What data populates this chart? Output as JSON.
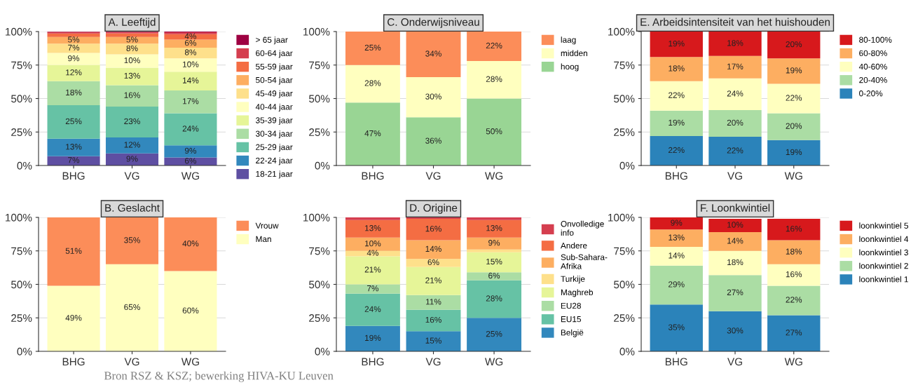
{
  "chart_data": [
    {
      "type": "bar",
      "stacked": true,
      "title": "A. Leeftijd",
      "categories": [
        "BHG",
        "VG",
        "WG"
      ],
      "ylim": [
        0,
        100
      ],
      "yticks": [
        {
          "value": 0,
          "label": "0%"
        },
        {
          "value": 25,
          "label": "25%"
        },
        {
          "value": 50,
          "label": "50%"
        },
        {
          "value": 75,
          "label": "75%"
        },
        {
          "value": 100,
          "label": "100%"
        }
      ],
      "grid": "y",
      "legend": "right",
      "series": [
        {
          "name": "18-21 jaar",
          "color": "#5e4fa2",
          "values": [
            7,
            9,
            6
          ],
          "value_labels": [
            "7%",
            "9%",
            "6%"
          ]
        },
        {
          "name": "22-24 jaar",
          "color": "#3288bd",
          "values": [
            13,
            12,
            9
          ],
          "value_labels": [
            "13%",
            "12%",
            "9%"
          ]
        },
        {
          "name": "25-29 jaar",
          "color": "#66c2a5",
          "values": [
            25,
            23,
            24
          ],
          "value_labels": [
            "25%",
            "23%",
            "24%"
          ]
        },
        {
          "name": "30-34 jaar",
          "color": "#abdda4",
          "values": [
            18,
            16,
            17
          ],
          "value_labels": [
            "18%",
            "16%",
            "17%"
          ]
        },
        {
          "name": "35-39 jaar",
          "color": "#e6f598",
          "values": [
            12,
            13,
            14
          ],
          "value_labels": [
            "12%",
            "13%",
            "14%"
          ]
        },
        {
          "name": "40-44 jaar",
          "color": "#ffffbf",
          "values": [
            9,
            10,
            10
          ],
          "value_labels": [
            "9%",
            "10%",
            "10%"
          ]
        },
        {
          "name": "45-49 jaar",
          "color": "#fee08b",
          "values": [
            7,
            8,
            8
          ],
          "value_labels": [
            "7%",
            "8%",
            "8%"
          ]
        },
        {
          "name": "50-54 jaar",
          "color": "#fdae61",
          "values": [
            5,
            5,
            6
          ],
          "value_labels": [
            "5%",
            "5%",
            "6%"
          ]
        },
        {
          "name": "55-59 jaar",
          "color": "#f46d43",
          "values": [
            2.5,
            2.7,
            4
          ],
          "value_labels": [
            null,
            null,
            "4%"
          ]
        },
        {
          "name": "60-64 jaar",
          "color": "#d53e4f",
          "values": [
            1.2,
            1,
            1.5
          ],
          "value_labels": [
            null,
            null,
            null
          ]
        },
        {
          "name": "> 65 jaar",
          "color": "#9e0142",
          "values": [
            0.3,
            0.3,
            0.5
          ],
          "value_labels": [
            null,
            null,
            null
          ]
        }
      ]
    },
    {
      "type": "bar",
      "stacked": true,
      "title": "C. Onderwijsniveau",
      "categories": [
        "BHG",
        "VG",
        "WG"
      ],
      "ylim": [
        0,
        100
      ],
      "yticks": [
        {
          "value": 0,
          "label": "0%"
        },
        {
          "value": 25,
          "label": "25%"
        },
        {
          "value": 50,
          "label": "50%"
        },
        {
          "value": 75,
          "label": "75%"
        },
        {
          "value": 100,
          "label": "100%"
        }
      ],
      "grid": "y",
      "legend": "right",
      "series": [
        {
          "name": "hoog",
          "color": "#99d594",
          "values": [
            47,
            36,
            50
          ],
          "value_labels": [
            "47%",
            "36%",
            "50%"
          ]
        },
        {
          "name": "midden",
          "color": "#ffffbf",
          "values": [
            28,
            30,
            28
          ],
          "value_labels": [
            "28%",
            "30%",
            "28%"
          ]
        },
        {
          "name": "laag",
          "color": "#fc8d59",
          "values": [
            25,
            34,
            22
          ],
          "value_labels": [
            "25%",
            "34%",
            "22%"
          ]
        }
      ]
    },
    {
      "type": "bar",
      "stacked": true,
      "title": "E. Arbeidsintensiteit van het huishouden",
      "categories": [
        "BHG",
        "VG",
        "WG"
      ],
      "ylim": [
        0,
        100
      ],
      "yticks": [
        {
          "value": 0,
          "label": "0%"
        },
        {
          "value": 25,
          "label": "25%"
        },
        {
          "value": 50,
          "label": "50%"
        },
        {
          "value": 75,
          "label": "75%"
        },
        {
          "value": 100,
          "label": "100%"
        }
      ],
      "grid": "y",
      "legend": "right",
      "series": [
        {
          "name": "0-20%",
          "color": "#2b83ba",
          "values": [
            22,
            21.5,
            19
          ],
          "value_labels": [
            "22%",
            "22%",
            "19%"
          ]
        },
        {
          "name": "20-40%",
          "color": "#abdda4",
          "values": [
            19,
            19.9,
            20
          ],
          "value_labels": [
            "19%",
            "20%",
            "20%"
          ]
        },
        {
          "name": "40-60%",
          "color": "#ffffbf",
          "values": [
            22,
            23.6,
            22
          ],
          "value_labels": [
            "22%",
            "24%",
            "22%"
          ]
        },
        {
          "name": "60-80%",
          "color": "#fdae61",
          "values": [
            18,
            16.8,
            19
          ],
          "value_labels": [
            "18%",
            "17%",
            "19%"
          ]
        },
        {
          "name": "80-100%",
          "color": "#d7191c",
          "values": [
            19,
            18.2,
            20
          ],
          "value_labels": [
            "19%",
            "18%",
            "20%"
          ]
        }
      ]
    },
    {
      "type": "bar",
      "stacked": true,
      "title": "B. Geslacht",
      "categories": [
        "BHG",
        "VG",
        "WG"
      ],
      "ylim": [
        0,
        100
      ],
      "yticks": [
        {
          "value": 0,
          "label": "0%"
        },
        {
          "value": 25,
          "label": "25%"
        },
        {
          "value": 50,
          "label": "50%"
        },
        {
          "value": 75,
          "label": "75%"
        },
        {
          "value": 100,
          "label": "100%"
        }
      ],
      "grid": "y",
      "legend": "right",
      "annotations": [
        "Bron RSZ & KSZ; bewerking HIVA-KU Leuven"
      ],
      "series": [
        {
          "name": "Man",
          "color": "#ffffbf",
          "values": [
            49,
            65,
            60
          ],
          "value_labels": [
            "49%",
            "65%",
            "60%"
          ]
        },
        {
          "name": "Vrouw",
          "color": "#fc8d59",
          "values": [
            51,
            35,
            40
          ],
          "value_labels": [
            "51%",
            "35%",
            "40%"
          ]
        }
      ]
    },
    {
      "type": "bar",
      "stacked": true,
      "title": "D. Origine",
      "categories": [
        "BHG",
        "VG",
        "WG"
      ],
      "ylim": [
        0,
        100
      ],
      "yticks": [
        {
          "value": 0,
          "label": "0%"
        },
        {
          "value": 25,
          "label": "25%"
        },
        {
          "value": 50,
          "label": "50%"
        },
        {
          "value": 75,
          "label": "75%"
        },
        {
          "value": 100,
          "label": "100%"
        }
      ],
      "grid": "y",
      "legend": "right",
      "series": [
        {
          "name": "België",
          "color": "#3288bd",
          "values": [
            19,
            15,
            25
          ],
          "value_labels": [
            "19%",
            "15%",
            "25%"
          ]
        },
        {
          "name": "EU15",
          "color": "#66c2a5",
          "values": [
            24,
            16,
            28
          ],
          "value_labels": [
            "24%",
            "16%",
            "28%"
          ]
        },
        {
          "name": "EU28",
          "color": "#abdda4",
          "values": [
            7,
            11,
            6
          ],
          "value_labels": [
            "7%",
            "11%",
            "6%"
          ]
        },
        {
          "name": "Maghreb",
          "color": "#e6f598",
          "values": [
            21,
            21,
            15
          ],
          "value_labels": [
            "21%",
            "21%",
            "15%"
          ]
        },
        {
          "name": "Turkije",
          "color": "#fee08b",
          "values": [
            4,
            6,
            2
          ],
          "value_labels": [
            "4%",
            "6%",
            null
          ]
        },
        {
          "name": "Sub-Sahara-\nAfrika",
          "color": "#fdae61",
          "values": [
            10,
            14,
            9
          ],
          "value_labels": [
            "10%",
            "14%",
            "9%"
          ]
        },
        {
          "name": "Andere",
          "color": "#f46d43",
          "values": [
            13,
            16,
            13
          ],
          "value_labels": [
            "13%",
            "16%",
            "13%"
          ]
        },
        {
          "name": "Onvolledige\ninfo",
          "color": "#d53e4f",
          "values": [
            2,
            1,
            2
          ],
          "value_labels": [
            null,
            null,
            null
          ]
        }
      ]
    },
    {
      "type": "bar",
      "stacked": true,
      "title": "F. Loonkwintiel",
      "categories": [
        "BHG",
        "VG",
        "WG"
      ],
      "ylim": [
        0,
        100
      ],
      "yticks": [
        {
          "value": 0,
          "label": "0%"
        },
        {
          "value": 25,
          "label": "25%"
        },
        {
          "value": 50,
          "label": "50%"
        },
        {
          "value": 75,
          "label": "75%"
        },
        {
          "value": 100,
          "label": "100%"
        }
      ],
      "grid": "y",
      "legend": "right",
      "series": [
        {
          "name": "loonkwintiel 1",
          "color": "#2b83ba",
          "values": [
            35,
            30,
            27
          ],
          "value_labels": [
            "35%",
            "30%",
            "27%"
          ]
        },
        {
          "name": "loonkwintiel 2",
          "color": "#abdda4",
          "values": [
            29,
            27,
            22
          ],
          "value_labels": [
            "29%",
            "27%",
            "22%"
          ]
        },
        {
          "name": "loonkwintiel 3",
          "color": "#ffffbf",
          "values": [
            14,
            18,
            16
          ],
          "value_labels": [
            "14%",
            "18%",
            "16%"
          ]
        },
        {
          "name": "loonkwintiel 4",
          "color": "#fdae61",
          "values": [
            13,
            14,
            18
          ],
          "value_labels": [
            "13%",
            "14%",
            "18%"
          ]
        },
        {
          "name": "loonkwintiel 5",
          "color": "#d7191c",
          "values": [
            9,
            10,
            16
          ],
          "value_labels": [
            "9%",
            "10%",
            "16%"
          ]
        }
      ]
    }
  ]
}
